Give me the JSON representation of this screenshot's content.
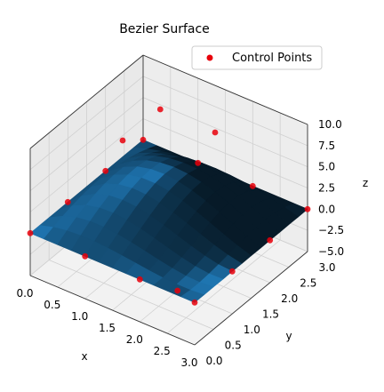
{
  "chart_data": {
    "type": "surface3d",
    "title": "Bezier Surface",
    "xlabel": "x",
    "ylabel": "y",
    "zlabel": "z",
    "xticks": [
      "0.0",
      "0.5",
      "1.0",
      "1.5",
      "2.0",
      "2.5",
      "3.0"
    ],
    "yticks": [
      "0.0",
      "0.5",
      "1.0",
      "1.5",
      "2.0",
      "2.5",
      "3.0"
    ],
    "zticks": [
      "−5.0",
      "−2.5",
      "0.0",
      "2.5",
      "5.0",
      "7.5",
      "10.0"
    ],
    "xlim": [
      0,
      3
    ],
    "ylim": [
      0,
      3
    ],
    "zlim": [
      -5,
      10
    ],
    "grid": true,
    "legend": {
      "position": "top-right",
      "entries": [
        {
          "label": "Control Points",
          "color": "#e8000b"
        }
      ]
    },
    "control_points": [
      {
        "x": 0,
        "y": 0,
        "z": 0
      },
      {
        "x": 1,
        "y": 0,
        "z": 0
      },
      {
        "x": 2,
        "y": 0,
        "z": 0
      },
      {
        "x": 3,
        "y": 0,
        "z": 0
      },
      {
        "x": 0,
        "y": 1,
        "z": 0
      },
      {
        "x": 1,
        "y": 1,
        "z": 10
      },
      {
        "x": 2,
        "y": 1,
        "z": -5
      },
      {
        "x": 3,
        "y": 1,
        "z": 0
      },
      {
        "x": 0,
        "y": 2,
        "z": 0
      },
      {
        "x": 1,
        "y": 2,
        "z": 10
      },
      {
        "x": 2,
        "y": 2,
        "z": 10
      },
      {
        "x": 3,
        "y": 2,
        "z": 0
      },
      {
        "x": 0,
        "y": 3,
        "z": 0
      },
      {
        "x": 1,
        "y": 3,
        "z": 0
      },
      {
        "x": 2,
        "y": 3,
        "z": 0
      },
      {
        "x": 3,
        "y": 3,
        "z": 0
      }
    ],
    "surface_color": "#1f77b4",
    "point_color": "#e8000b"
  }
}
